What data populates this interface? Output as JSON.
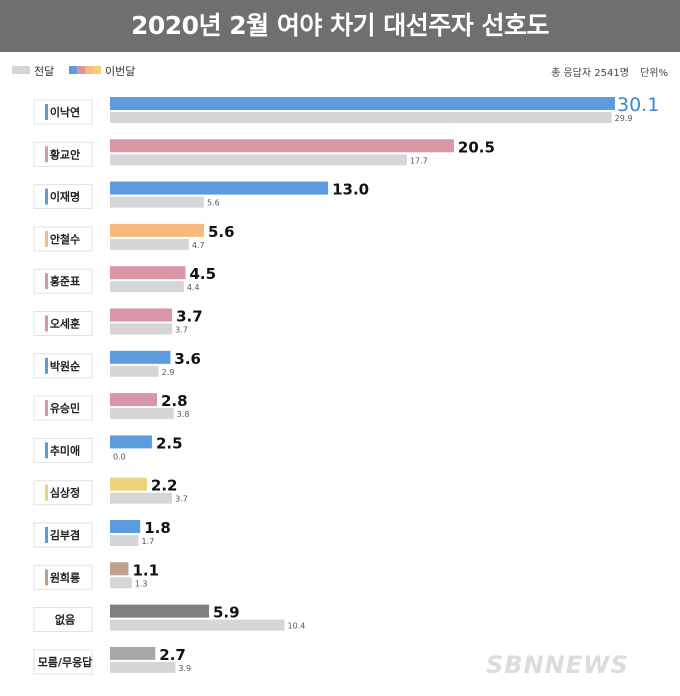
{
  "title": "2020년 2월 여야 차기 대선주자 선호도",
  "legend": {
    "prev_label": "전달",
    "curr_label": "이번달"
  },
  "meta": {
    "respondents": "총 응답자 2541명",
    "unit": "단위%"
  },
  "colors": {
    "title_bg": "#6f6f6f",
    "prev": "#d6d6d6",
    "blue": "#5b9bde",
    "pink": "#d896a6",
    "orange": "#f7b97c",
    "yellow": "#ecd27a",
    "brown": "#c0a08a",
    "darkgray": "#7f7f7f",
    "gray": "#a8a8a8",
    "highlight_text": "#3a87d3"
  },
  "watermark": "SBNNEWS",
  "chart_data": {
    "type": "bar",
    "orientation": "horizontal",
    "title": "2020년 2월 여야 차기 대선주자 선호도",
    "categories": [
      "이낙연",
      "황교안",
      "이재명",
      "안철수",
      "홍준표",
      "오세훈",
      "박원순",
      "유승민",
      "추미애",
      "심상정",
      "김부겸",
      "원희룡",
      "없음",
      "모름/무응답"
    ],
    "series": [
      {
        "name": "이번달",
        "values": [
          30.1,
          20.5,
          13.0,
          5.6,
          4.5,
          3.7,
          3.6,
          2.8,
          2.5,
          2.2,
          1.8,
          1.1,
          5.9,
          2.7
        ]
      },
      {
        "name": "전달",
        "values": [
          29.9,
          17.7,
          5.6,
          4.7,
          4.4,
          3.7,
          2.9,
          3.8,
          0.0,
          3.7,
          1.7,
          1.3,
          10.4,
          3.9
        ]
      }
    ],
    "value_labels_current": [
      "30.1",
      "20.5",
      "13.0",
      "5.6",
      "4.5",
      "3.7",
      "3.6",
      "2.8",
      "2.5",
      "2.2",
      "1.8",
      "1.1",
      "5.9",
      "2.7"
    ],
    "value_labels_prev": [
      "29.9",
      "17.7",
      "5.6",
      "4.7",
      "4.4",
      "3.7",
      "2.9",
      "3.8",
      "0.0",
      "3.7",
      "1.7",
      "1.3",
      "10.4",
      "3.9"
    ],
    "bar_colors_current": [
      "blue",
      "pink",
      "blue",
      "orange",
      "pink",
      "pink",
      "blue",
      "pink",
      "blue",
      "yellow",
      "blue",
      "brown",
      "darkgray",
      "gray"
    ],
    "marker_colors": [
      "blue",
      "pink",
      "blue",
      "orange",
      "pink",
      "pink",
      "blue",
      "pink",
      "blue",
      "yellow",
      "blue",
      "brown",
      "none",
      "none"
    ],
    "xlim": [
      0,
      30.1
    ],
    "grid": false
  }
}
